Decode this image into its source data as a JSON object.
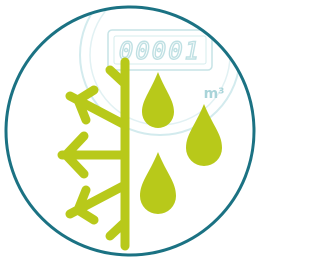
{
  "meter": {
    "reading": "00001",
    "unit": "m³"
  }
}
